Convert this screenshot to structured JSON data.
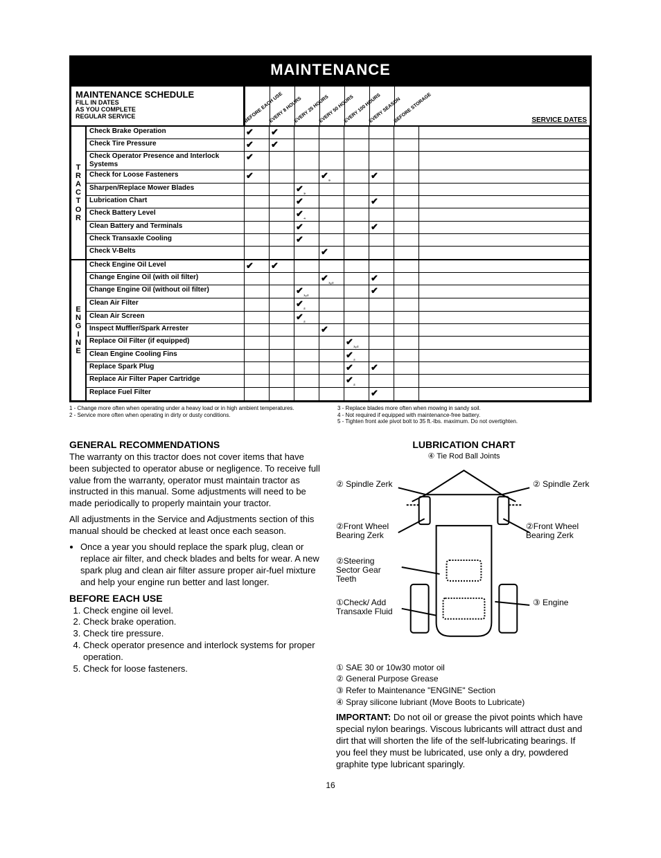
{
  "header": "MAINTENANCE",
  "schedule": {
    "title": "MAINTENANCE SCHEDULE",
    "subtitle": "FILL IN DATES\nAS YOU COMPLETE\nREGULAR SERVICE",
    "columns": [
      "BEFORE EACH USE",
      "EVERY 8 HOURS",
      "EVERY 25 HOURS",
      "EVERY 50 HOURS",
      "EVERY 100 HOURS",
      "EVERY SEASON",
      "BEFORE STORAGE"
    ],
    "service_dates_label": "SERVICE DATES",
    "sections": [
      {
        "side_label": "T\nR\nA\nC\nT\nO\nR",
        "rows": [
          {
            "task": "Check Brake Operation",
            "cells": [
              "✔",
              "✔",
              "",
              "",
              "",
              "",
              ""
            ]
          },
          {
            "task": "Check Tire Pressure",
            "cells": [
              "✔",
              "✔",
              "",
              "",
              "",
              "",
              ""
            ]
          },
          {
            "task": "Check Operator Presence and Interlock Systems",
            "cells": [
              "✔",
              "",
              "",
              "",
              "",
              "",
              ""
            ]
          },
          {
            "task": "Check for Loose Fasteners",
            "cells": [
              "✔",
              "",
              "",
              "✔₅",
              "",
              "✔",
              ""
            ]
          },
          {
            "task": "Sharpen/Replace Mower Blades",
            "cells": [
              "",
              "",
              "✔₃",
              "",
              "",
              "",
              ""
            ]
          },
          {
            "task": "Lubrication Chart",
            "cells": [
              "",
              "",
              "✔",
              "",
              "",
              "✔",
              ""
            ]
          },
          {
            "task": "Check Battery Level",
            "cells": [
              "",
              "",
              "✔₄",
              "",
              "",
              "",
              ""
            ]
          },
          {
            "task": "Clean Battery and Terminals",
            "cells": [
              "",
              "",
              "✔",
              "",
              "",
              "✔",
              ""
            ]
          },
          {
            "task": "Check Transaxle Cooling",
            "cells": [
              "",
              "",
              "✔",
              "",
              "",
              "",
              ""
            ]
          },
          {
            "task": "Check V-Belts",
            "cells": [
              "",
              "",
              "",
              "✔",
              "",
              "",
              ""
            ]
          }
        ]
      },
      {
        "side_label": "E\nN\nG\nI\nN\nE",
        "rows": [
          {
            "task": "Check Engine Oil Level",
            "cells": [
              "✔",
              "✔",
              "",
              "",
              "",
              "",
              ""
            ]
          },
          {
            "task": "Change Engine Oil (with oil filter)",
            "cells": [
              "",
              "",
              "",
              "✔₁,₂",
              "",
              "✔",
              ""
            ]
          },
          {
            "task": "Change Engine Oil (without oil filter)",
            "cells": [
              "",
              "",
              "✔₁,₂",
              "",
              "",
              "✔",
              ""
            ]
          },
          {
            "task": "Clean Air Filter",
            "cells": [
              "",
              "",
              "✔₂",
              "",
              "",
              "",
              ""
            ]
          },
          {
            "task": "Clean Air Screen",
            "cells": [
              "",
              "",
              "✔₂",
              "",
              "",
              "",
              ""
            ]
          },
          {
            "task": "Inspect Muffler/Spark Arrester",
            "cells": [
              "",
              "",
              "",
              "✔",
              "",
              "",
              ""
            ]
          },
          {
            "task": "Replace Oil Filter (if equipped)",
            "cells": [
              "",
              "",
              "",
              "",
              "✔₁,₂",
              "",
              ""
            ]
          },
          {
            "task": "Clean Engine Cooling Fins",
            "cells": [
              "",
              "",
              "",
              "",
              "✔₂",
              "",
              ""
            ]
          },
          {
            "task": "Replace Spark Plug",
            "cells": [
              "",
              "",
              "",
              "",
              "✔",
              "✔",
              ""
            ]
          },
          {
            "task": "Replace Air Filter Paper Cartridge",
            "cells": [
              "",
              "",
              "",
              "",
              "✔₂",
              "",
              ""
            ]
          },
          {
            "task": "Replace Fuel Filter",
            "cells": [
              "",
              "",
              "",
              "",
              "",
              "✔",
              ""
            ]
          }
        ]
      }
    ]
  },
  "footnotes_left": "1 - Change more often when operating under a heavy load or in high ambient temperatures.\n2 - Service more often when operating in dirty or dusty conditions.",
  "footnotes_right": "3 - Replace blades more often when mowing in sandy soil.\n4 - Not required if equipped with maintenance-free battery.\n5 - Tighten front axle pivot bolt to 35 ft.-lbs. maximum. Do not overtighten.",
  "left_col": {
    "gen_title": "GENERAL RECOMMENDATIONS",
    "gen_p1": "The warranty on this tractor does not cover items that have been subjected to operator abuse or negligence. To receive full value from the warranty, operator must maintain tractor as instructed in this manual. Some adjustments will need to be made periodically to properly maintain your tractor.",
    "gen_p2": "All adjustments in the Service and Adjustments section of this manual should be checked at least once each season.",
    "gen_bullet": "Once a year you should replace the spark plug, clean or replace air filter, and check blades and belts for wear. A new spark plug and clean air filter assure proper air-fuel mixture and help your engine run better and last longer.",
    "before_title": "BEFORE EACH USE",
    "before_items": [
      "Check engine oil level.",
      "Check brake operation.",
      "Check tire pressure.",
      "Check operator presence and interlock systems for proper operation.",
      "Check for loose fasteners."
    ]
  },
  "right_col": {
    "lube_title": "LUBRICATION CHART",
    "lube_sub": "④ Tie Rod Ball Joints",
    "labels": {
      "spindle_l": "② Spindle Zerk",
      "spindle_r": "② Spindle Zerk",
      "fwb_l": "②Front Wheel Bearing Zerk",
      "fwb_r": "②Front Wheel Bearing Zerk",
      "steering": "②Steering Sector Gear Teeth",
      "check": "①Check/ Add Transaxle Fluid",
      "engine": "③ Engine"
    },
    "lube_notes": [
      "① SAE 30 or 10w30 motor oil",
      "② General Purpose Grease",
      "③ Refer to Maintenance \"ENGINE\" Section",
      "④ Spray silicone lubriant (Move Boots to Lubricate)"
    ],
    "important_label": "IMPORTANT:",
    "important_body": "Do not oil or grease the pivot points which have special nylon bearings. Viscous lubricants will attract dust and dirt that will shorten the life of the self-lubricating bearings. If you feel they must be lubricated, use only a dry, powdered graphite type lubricant sparingly."
  },
  "page_number": "16"
}
